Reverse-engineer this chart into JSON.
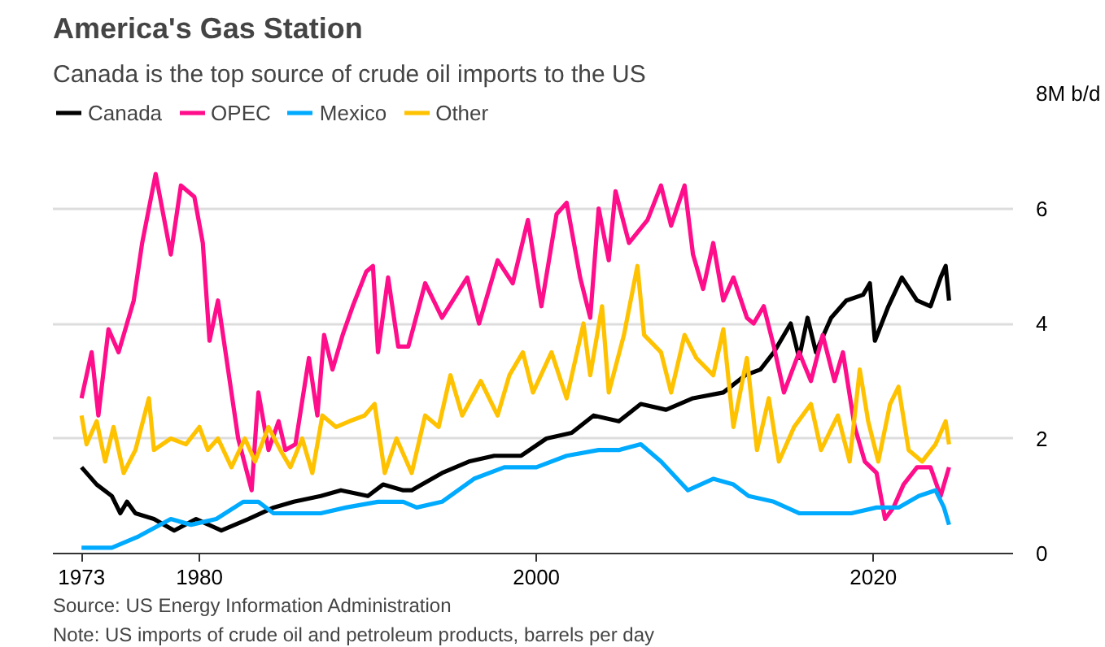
{
  "chart_data": {
    "type": "line",
    "title": "America's Gas Station",
    "subtitle": "Canada is the top source of crude oil imports to the US",
    "xlim": [
      1971.3,
      2028.3
    ],
    "xticks": [
      1973,
      1980,
      2000,
      2020
    ],
    "ylim": [
      0,
      8
    ],
    "yticks": [
      0,
      2,
      4,
      6,
      {
        "value": 8,
        "label": "8M b/d"
      }
    ],
    "grid": "y",
    "legend": "top left",
    "line_style": "solid",
    "annotations": [
      "Source: US Energy Information Administration",
      "Note: US imports of crude oil and petroleum products, barrels per day"
    ],
    "series": [
      {
        "name": "Canada",
        "color": "#000000",
        "x": [
          1973.0,
          1973.9,
          1974.8,
          1975.3,
          1975.7,
          1976.2,
          1977.3,
          1978.5,
          1979.8,
          1981.3,
          1982.9,
          1984.4,
          1985.6,
          1987.2,
          1988.4,
          1990.0,
          1990.9,
          1992.1,
          1992.6,
          1994.4,
          1996.0,
          1997.5,
          1999.1,
          2000.6,
          2002.1,
          2003.4,
          2004.9,
          2006.2,
          2007.7,
          2009.3,
          2011.1,
          2012.4,
          2013.3,
          2014.1,
          2015.1,
          2015.6,
          2016.1,
          2016.6,
          2017.5,
          2018.4,
          2019.4,
          2019.8,
          2020.1,
          2020.9,
          2021.7,
          2022.6,
          2023.4,
          2024.0,
          2024.3,
          2024.5
        ],
        "values": [
          1.5,
          1.2,
          1.0,
          0.7,
          0.9,
          0.7,
          0.6,
          0.4,
          0.6,
          0.4,
          0.6,
          0.8,
          0.9,
          1.0,
          1.1,
          1.0,
          1.2,
          1.1,
          1.1,
          1.4,
          1.6,
          1.7,
          1.7,
          2.0,
          2.1,
          2.4,
          2.3,
          2.6,
          2.5,
          2.7,
          2.8,
          3.1,
          3.2,
          3.5,
          4.0,
          3.4,
          4.1,
          3.5,
          4.1,
          4.4,
          4.5,
          4.7,
          3.7,
          4.3,
          4.8,
          4.4,
          4.3,
          4.8,
          5.0,
          4.4
        ]
      },
      {
        "name": "OPEC",
        "color": "#ff0d8a",
        "x": [
          1973.0,
          1973.6,
          1974.0,
          1974.6,
          1975.2,
          1976.1,
          1976.6,
          1977.4,
          1978.3,
          1978.9,
          1979.7,
          1980.2,
          1980.6,
          1981.1,
          1981.7,
          1982.3,
          1983.1,
          1983.5,
          1984.1,
          1984.7,
          1985.1,
          1985.7,
          1986.5,
          1987.0,
          1987.4,
          1987.9,
          1988.5,
          1989.1,
          1989.9,
          1990.3,
          1990.6,
          1991.2,
          1991.8,
          1992.4,
          1993.4,
          1994.4,
          1995.9,
          1996.6,
          1997.7,
          1998.6,
          1999.5,
          2000.3,
          2001.2,
          2001.8,
          2002.6,
          2003.2,
          2003.7,
          2004.3,
          2004.7,
          2005.5,
          2006.6,
          2007.4,
          2008.0,
          2008.8,
          2009.3,
          2009.9,
          2010.5,
          2011.1,
          2011.7,
          2012.5,
          2012.9,
          2013.5,
          2014.1,
          2014.7,
          2015.6,
          2016.3,
          2017.0,
          2017.7,
          2018.2,
          2018.9,
          2019.5,
          2020.2,
          2020.7,
          2021.2,
          2021.8,
          2022.6,
          2023.4,
          2024.0,
          2024.5
        ],
        "values": [
          2.7,
          3.5,
          2.4,
          3.9,
          3.5,
          4.4,
          5.4,
          6.6,
          5.2,
          6.4,
          6.2,
          5.4,
          3.7,
          4.4,
          3.2,
          2.0,
          1.1,
          2.8,
          1.8,
          2.3,
          1.8,
          1.9,
          3.4,
          2.4,
          3.8,
          3.2,
          3.8,
          4.3,
          4.9,
          5.0,
          3.5,
          4.8,
          3.6,
          3.6,
          4.7,
          4.1,
          4.8,
          4.0,
          5.1,
          4.7,
          5.8,
          4.3,
          5.9,
          6.1,
          4.8,
          4.1,
          6.0,
          5.1,
          6.3,
          5.4,
          5.8,
          6.4,
          5.7,
          6.4,
          5.2,
          4.6,
          5.4,
          4.4,
          4.8,
          4.1,
          4.0,
          4.3,
          3.6,
          2.8,
          3.5,
          3.0,
          3.8,
          3.0,
          3.5,
          2.2,
          1.6,
          1.4,
          0.6,
          0.8,
          1.2,
          1.5,
          1.5,
          1.0,
          1.5
        ]
      },
      {
        "name": "Mexico",
        "color": "#00aaff",
        "x": [
          1973.0,
          1974.8,
          1976.4,
          1978.3,
          1979.5,
          1981.0,
          1982.6,
          1983.5,
          1984.4,
          1985.6,
          1987.2,
          1988.7,
          1990.6,
          1992.1,
          1992.9,
          1994.4,
          1996.3,
          1998.1,
          2000.0,
          2001.8,
          2003.7,
          2004.9,
          2006.2,
          2007.4,
          2009.0,
          2010.5,
          2011.7,
          2012.6,
          2014.1,
          2015.6,
          2017.2,
          2018.7,
          2020.2,
          2021.5,
          2022.7,
          2023.7,
          2024.2,
          2024.5
        ],
        "values": [
          0.1,
          0.1,
          0.3,
          0.6,
          0.5,
          0.6,
          0.9,
          0.9,
          0.7,
          0.7,
          0.7,
          0.8,
          0.9,
          0.9,
          0.8,
          0.9,
          1.3,
          1.5,
          1.5,
          1.7,
          1.8,
          1.8,
          1.9,
          1.6,
          1.1,
          1.3,
          1.2,
          1.0,
          0.9,
          0.7,
          0.7,
          0.7,
          0.8,
          0.8,
          1.0,
          1.1,
          0.8,
          0.5
        ]
      },
      {
        "name": "Other",
        "color": "#ffc200",
        "x": [
          1973.0,
          1973.3,
          1973.9,
          1974.4,
          1974.9,
          1975.5,
          1976.2,
          1977.0,
          1977.3,
          1978.3,
          1979.2,
          1980.0,
          1980.5,
          1981.1,
          1981.9,
          1982.7,
          1983.3,
          1984.1,
          1984.8,
          1985.4,
          1986.1,
          1986.7,
          1987.3,
          1988.1,
          1988.9,
          1989.8,
          1990.4,
          1991.0,
          1991.7,
          1992.6,
          1993.4,
          1994.2,
          1994.9,
          1995.6,
          1996.7,
          1997.7,
          1998.4,
          1999.2,
          1999.8,
          2000.9,
          2001.8,
          2002.8,
          2003.2,
          2003.9,
          2004.3,
          2005.2,
          2006.0,
          2006.4,
          2007.4,
          2008.0,
          2008.8,
          2009.5,
          2010.5,
          2011.1,
          2011.7,
          2012.5,
          2013.1,
          2013.8,
          2014.4,
          2015.3,
          2016.3,
          2016.9,
          2017.9,
          2018.6,
          2019.2,
          2019.7,
          2020.3,
          2021.0,
          2021.5,
          2022.1,
          2022.9,
          2023.7,
          2024.3,
          2024.5
        ],
        "values": [
          2.4,
          1.9,
          2.3,
          1.6,
          2.2,
          1.4,
          1.8,
          2.7,
          1.8,
          2.0,
          1.9,
          2.2,
          1.8,
          2.0,
          1.5,
          2.0,
          1.6,
          2.2,
          1.8,
          1.5,
          2.0,
          1.4,
          2.4,
          2.2,
          2.3,
          2.4,
          2.6,
          1.4,
          2.0,
          1.4,
          2.4,
          2.2,
          3.1,
          2.4,
          3.0,
          2.4,
          3.1,
          3.5,
          2.8,
          3.5,
          2.7,
          4.0,
          3.1,
          4.3,
          2.8,
          3.8,
          5.0,
          3.8,
          3.5,
          2.8,
          3.8,
          3.4,
          3.1,
          3.9,
          2.2,
          3.4,
          1.8,
          2.7,
          1.6,
          2.2,
          2.6,
          1.8,
          2.4,
          1.6,
          3.2,
          2.3,
          1.6,
          2.6,
          2.9,
          1.8,
          1.6,
          1.9,
          2.3,
          1.9
        ]
      }
    ]
  }
}
